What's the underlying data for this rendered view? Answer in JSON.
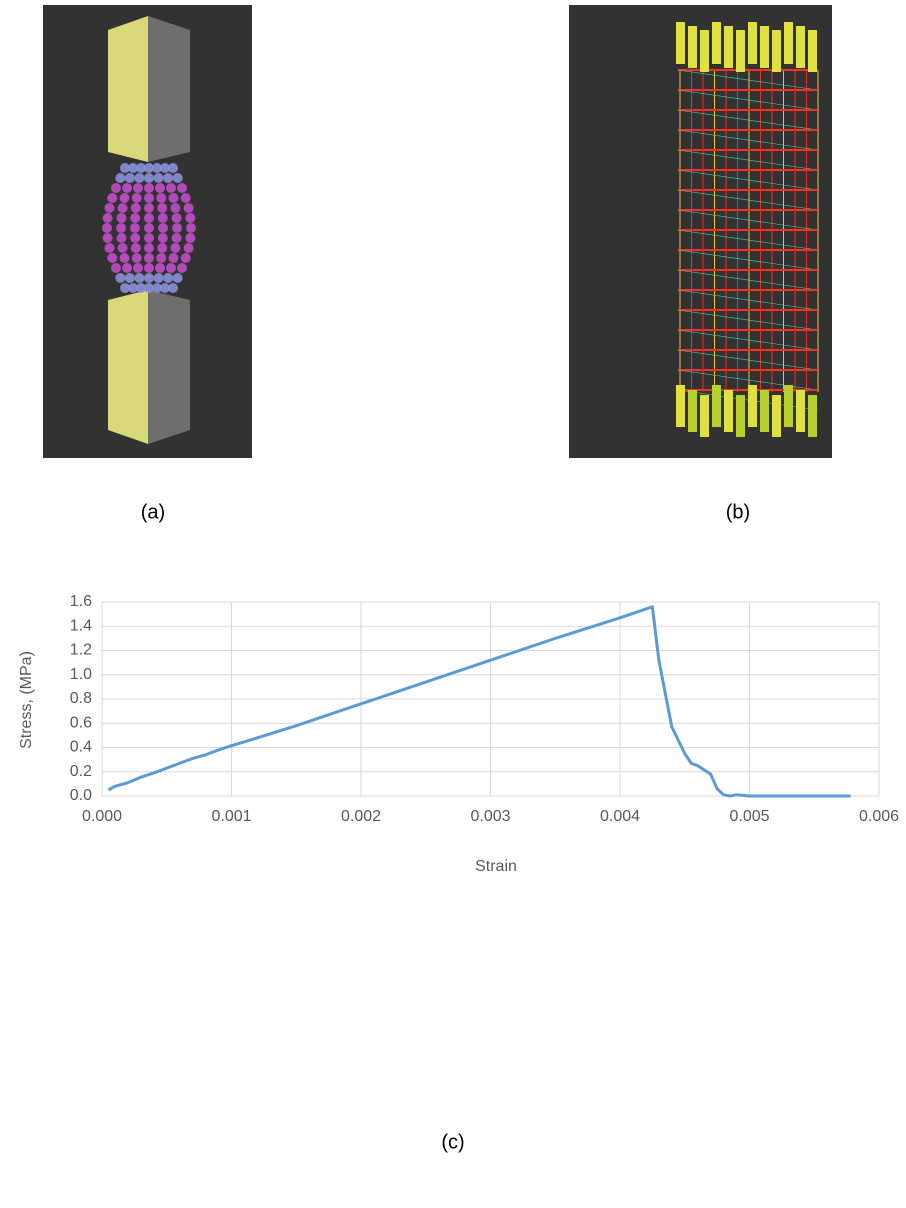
{
  "labels": [
    "(a)",
    "(b)",
    "(c)"
  ],
  "chart_data": {
    "type": "line",
    "xlabel": "Strain",
    "ylabel": "Stress, (MPa)",
    "x": [
      5e-05,
      0.0001,
      0.0002,
      0.0003,
      0.0004,
      0.0005,
      0.0006,
      0.0007,
      0.0008,
      0.0009,
      0.001,
      0.0012,
      0.0015,
      0.002,
      0.0025,
      0.003,
      0.0035,
      0.004,
      0.00425,
      0.0043,
      0.0044,
      0.0045,
      0.00455,
      0.0046,
      0.0047,
      0.00475,
      0.0048,
      0.00485,
      0.0049,
      0.005,
      0.0052,
      0.0055,
      0.00578
    ],
    "series": [
      {
        "color": "#5b9bd5",
        "values": [
          0.05,
          0.08,
          0.11,
          0.155,
          0.19,
          0.23,
          0.27,
          0.31,
          0.34,
          0.38,
          0.415,
          0.48,
          0.58,
          0.76,
          0.94,
          1.12,
          1.3,
          1.47,
          1.56,
          1.12,
          0.57,
          0.35,
          0.27,
          0.25,
          0.18,
          0.06,
          0.01,
          0.0,
          0.01,
          0.0,
          0.0,
          0.0,
          0.0
        ]
      }
    ],
    "xlim": [
      0,
      0.006
    ],
    "xticks": [
      {
        "value": 0,
        "label": "0.000"
      },
      {
        "value": 0.001,
        "label": "0.001"
      },
      {
        "value": 0.002,
        "label": "0.002"
      },
      {
        "value": 0.003,
        "label": "0.003"
      },
      {
        "value": 0.004,
        "label": "0.004"
      },
      {
        "value": 0.005,
        "label": "0.005"
      },
      {
        "value": 0.006,
        "label": "0.006"
      }
    ],
    "ylim": [
      0,
      1.6
    ],
    "yticks": [
      {
        "value": 0,
        "label": "0.0"
      },
      0.2,
      0.4,
      0.6,
      0.8,
      {
        "value": 1,
        "label": "1.0"
      },
      1.2,
      1.4,
      1.6
    ],
    "grid": true
  }
}
